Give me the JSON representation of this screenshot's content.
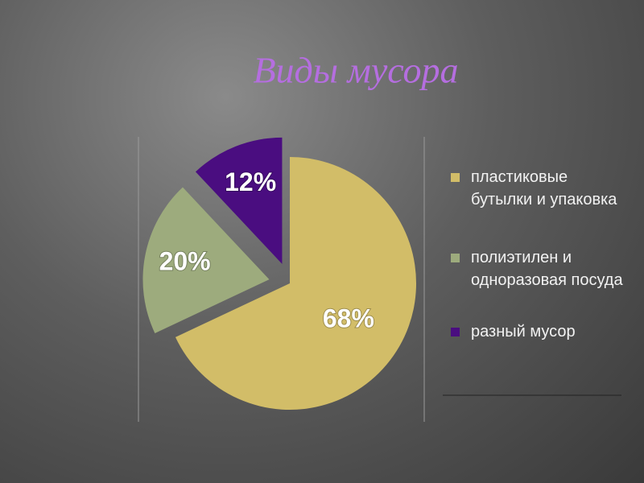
{
  "chart_data": {
    "type": "pie",
    "title": "Виды мусора",
    "categories": [
      "пластиковые бутылки и упаковка",
      "полиэтилен и одноразовая посуда",
      "разный мусор"
    ],
    "values": [
      68,
      20,
      12
    ],
    "value_labels": [
      "68%",
      "20%",
      "12%"
    ],
    "colors": [
      "#d2bd68",
      "#9dab7d",
      "#4a0d80"
    ],
    "legend": "right"
  }
}
